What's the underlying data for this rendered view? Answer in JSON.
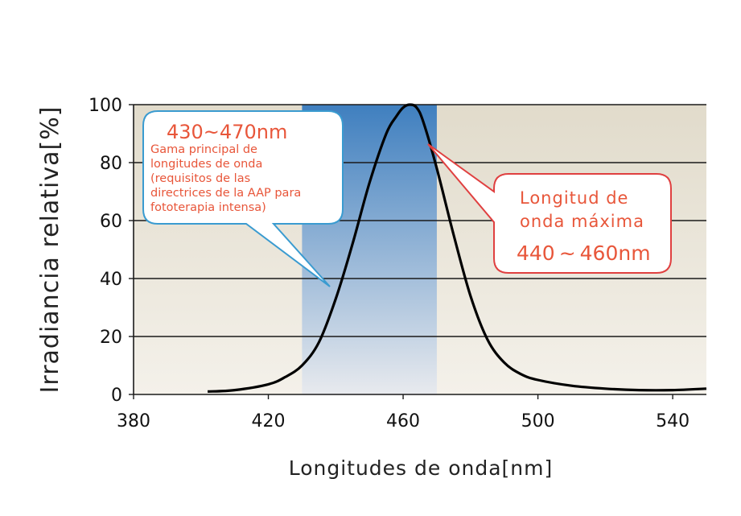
{
  "chart_data": {
    "type": "line",
    "xlabel": "Longitudes de onda[nm]",
    "ylabel": "Irradiancia relativa[%]",
    "xlim": [
      380,
      550
    ],
    "ylim": [
      0,
      100
    ],
    "x_ticks": [
      "380",
      "420",
      "460",
      "500",
      "540"
    ],
    "y_ticks": [
      "0",
      "20",
      "40",
      "60",
      "80",
      "100"
    ],
    "grid": "horizontal",
    "highlight_band": {
      "x_range": [
        430,
        470
      ]
    },
    "series": [
      {
        "x": [
          402,
          410,
          420,
          425,
          430,
          435,
          440,
          445,
          450,
          455,
          458,
          460,
          462,
          464,
          466,
          470,
          475,
          480,
          485,
          490,
          495,
          500,
          510,
          520,
          530,
          540,
          550
        ],
        "values": [
          1,
          1.5,
          3.5,
          6,
          10,
          18,
          33,
          52,
          73,
          90,
          96,
          99,
          100,
          99,
          94,
          78,
          55,
          34,
          19,
          11,
          7,
          5,
          3,
          2,
          1.5,
          1.5,
          2
        ]
      }
    ],
    "annotations": {
      "band_callout": {
        "range_text": "430~470nm",
        "lines": [
          "Gama principal de",
          "longitudes de onda",
          "(requisitos de las",
          "directrices de la AAP para",
          "fototerapia intensa)"
        ]
      },
      "peak_callout": {
        "lines": [
          "Longitud de",
          "onda máxima"
        ],
        "range_text": "440 ~ 460nm"
      }
    }
  }
}
